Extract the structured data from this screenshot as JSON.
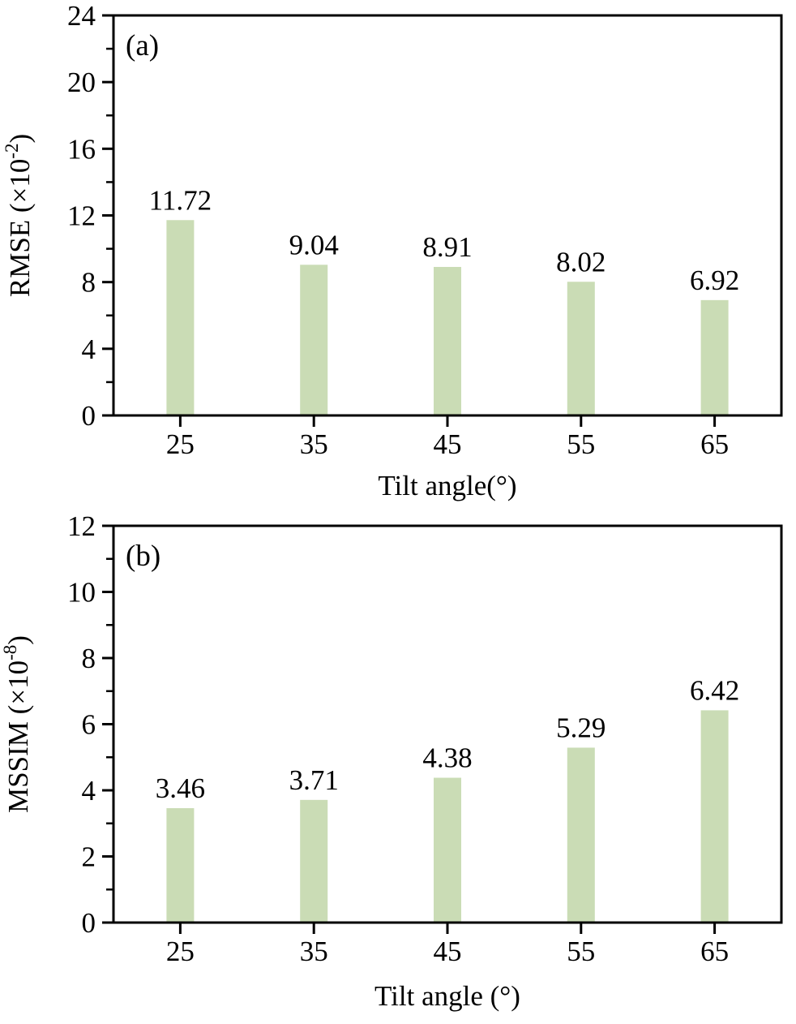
{
  "page": {
    "background": "#ffffff",
    "text_color": "#000000"
  },
  "chart_data": [
    {
      "type": "bar",
      "panel_label": "(a)",
      "categories": [
        "25",
        "35",
        "45",
        "55",
        "65"
      ],
      "values": [
        11.72,
        9.04,
        8.91,
        8.02,
        6.92
      ],
      "value_labels": [
        "11.72",
        "9.04",
        "8.91",
        "8.02",
        "6.92"
      ],
      "title": "",
      "xlabel": "Tilt angle(°)",
      "ylabel": {
        "base": "RMSE (×10",
        "sup": "-2",
        "close": ")"
      },
      "ylim": [
        0,
        24
      ],
      "ytick_major_step": 4,
      "ytick_minor_step": 2,
      "grid": false,
      "legend": null,
      "bar_color": "#cadcb5",
      "axis_color": "#000000"
    },
    {
      "type": "bar",
      "panel_label": "(b)",
      "categories": [
        "25",
        "35",
        "45",
        "55",
        "65"
      ],
      "values": [
        3.46,
        3.71,
        4.38,
        5.29,
        6.42
      ],
      "value_labels": [
        "3.46",
        "3.71",
        "4.38",
        "5.29",
        "6.42"
      ],
      "title": "",
      "xlabel": "Tilt angle (°)",
      "ylabel": {
        "base": "MSSIM (×10",
        "sup": "-8",
        "close": ")"
      },
      "ylim": [
        0,
        12
      ],
      "ytick_major_step": 2,
      "ytick_minor_step": 1,
      "grid": false,
      "legend": null,
      "bar_color": "#cadcb5",
      "axis_color": "#000000"
    }
  ]
}
